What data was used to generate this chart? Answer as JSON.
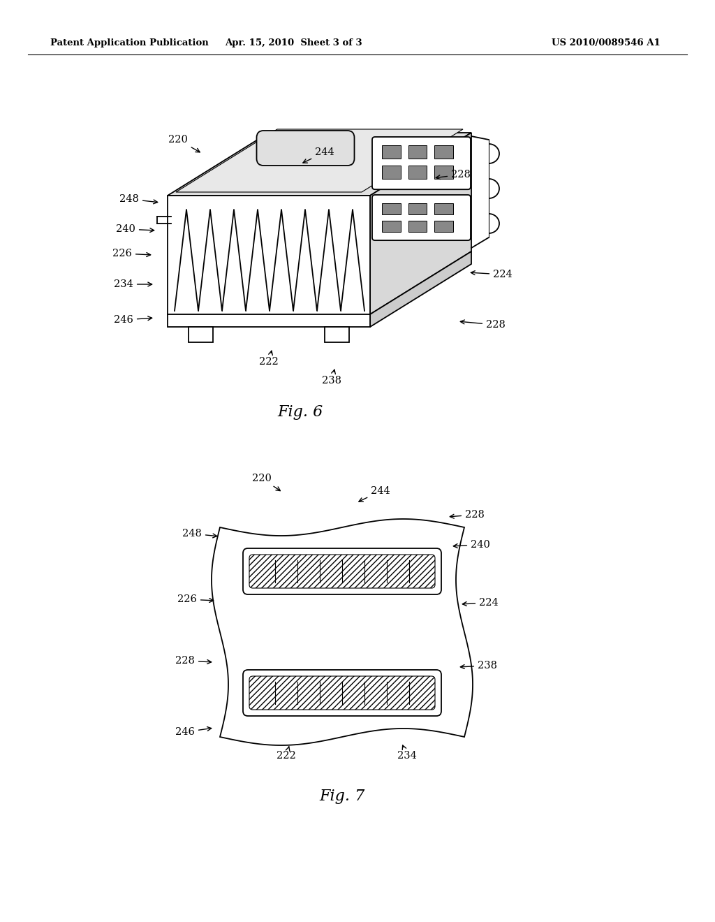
{
  "background_color": "#ffffff",
  "header_left": "Patent Application Publication",
  "header_center": "Apr. 15, 2010  Sheet 3 of 3",
  "header_right": "US 2010/0089546 A1",
  "fig6_caption": "Fig. 6",
  "fig7_caption": "Fig. 7",
  "line_color": "#000000",
  "label_fontsize": 10.5,
  "header_fontsize": 9.5,
  "caption_fontsize": 16
}
